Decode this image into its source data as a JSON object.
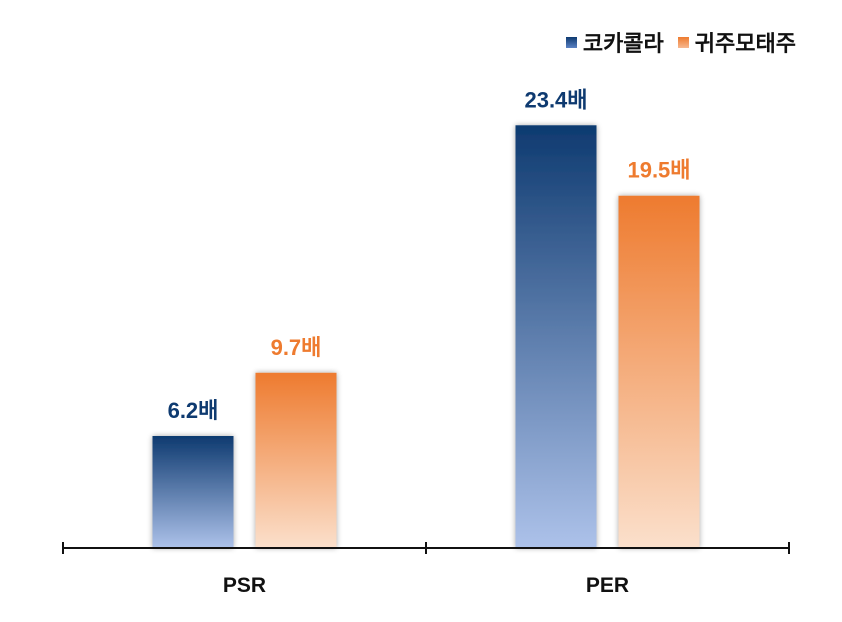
{
  "chart_data": {
    "type": "bar",
    "categories": [
      "PSR",
      "PER"
    ],
    "series": [
      {
        "name": "코카콜라",
        "values": [
          6.2,
          23.4
        ],
        "labels": [
          "6.2배",
          "23.4배"
        ],
        "color": "#0e3a70",
        "color_light": "#adc2ea",
        "label_color": "#0e3a70"
      },
      {
        "name": "귀주모태주",
        "values": [
          9.7,
          19.5
        ],
        "labels": [
          "9.7배",
          "19.5배"
        ],
        "color": "#ee7b2f",
        "color_light": "#fbe0cc",
        "label_color": "#ee7b2f"
      }
    ],
    "legend_position": "top-right",
    "grid": false,
    "ylim": [
      0,
      24.8
    ]
  }
}
